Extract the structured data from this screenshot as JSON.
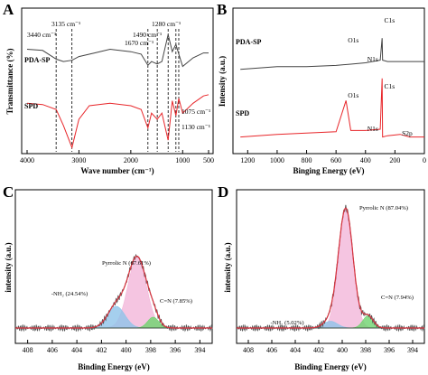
{
  "panels": {
    "A": "A",
    "B": "B",
    "C": "C",
    "D": "D"
  },
  "colors": {
    "pda_sp": "#444444",
    "spd": "#e8262a",
    "envelope": "#d9333f",
    "pyrrolic_fill": "#f2b6d9",
    "nh2_fill": "#8fc3ea",
    "cn_fill": "#6ed36e",
    "raw_data": "#555555",
    "background_line": "#222222"
  },
  "chart_data": [
    {
      "panel": "A",
      "type": "line",
      "xlabel": "Wave number (cm⁻¹)",
      "ylabel": "Transmittance (%)",
      "xlim": [
        4000,
        500
      ],
      "x_ticks": [
        "4000",
        "3000",
        "2000",
        "1000",
        "500"
      ],
      "series": [
        {
          "name": "PDA-SP",
          "x": [
            4000,
            3700,
            3440,
            3300,
            3135,
            3000,
            2700,
            2400,
            2000,
            1800,
            1670,
            1600,
            1490,
            1400,
            1280,
            1200,
            1130,
            1075,
            1000,
            800,
            600,
            500
          ],
          "y": [
            0.82,
            0.81,
            0.74,
            0.72,
            0.73,
            0.76,
            0.79,
            0.82,
            0.8,
            0.78,
            0.69,
            0.72,
            0.7,
            0.72,
            0.94,
            0.8,
            0.86,
            0.78,
            0.68,
            0.75,
            0.79,
            0.79
          ]
        },
        {
          "name": "SPD",
          "x": [
            4000,
            3700,
            3440,
            3300,
            3135,
            3000,
            2800,
            2400,
            2000,
            1800,
            1670,
            1600,
            1490,
            1400,
            1280,
            1200,
            1130,
            1075,
            1000,
            800,
            600,
            500
          ],
          "y": [
            0.38,
            0.37,
            0.33,
            0.2,
            0.02,
            0.25,
            0.36,
            0.38,
            0.36,
            0.33,
            0.18,
            0.3,
            0.25,
            0.3,
            0.08,
            0.4,
            0.28,
            0.42,
            0.3,
            0.38,
            0.44,
            0.45
          ]
        }
      ],
      "labels": {
        "pda_sp": "PDA-SP",
        "spd": "SPD"
      },
      "peaks": [
        {
          "x": 3440,
          "label": "3440 cm⁻¹"
        },
        {
          "x": 3135,
          "label": "3135 cm⁻¹"
        },
        {
          "x": 1670,
          "label": "1670 cm⁻¹"
        },
        {
          "x": 1490,
          "label": "1490 cm⁻¹"
        },
        {
          "x": 1280,
          "label": "1280 cm⁻¹"
        },
        {
          "x": 1130,
          "label": "1130 cm⁻¹"
        },
        {
          "x": 1075,
          "label": "1075 cm⁻¹"
        }
      ]
    },
    {
      "panel": "B",
      "type": "line",
      "xlabel": "Binging Energy (eV)",
      "ylabel": "Intensity (a.u.)",
      "xlim": [
        1300,
        0
      ],
      "x_ticks": [
        "1200",
        "1000",
        "800",
        "600",
        "400",
        "200",
        "0"
      ],
      "series": [
        {
          "name": "PDA-SP",
          "x": [
            1250,
            1000,
            800,
            600,
            500,
            400,
            300,
            287,
            284,
            250,
            100,
            0
          ],
          "y": [
            0.62,
            0.64,
            0.64,
            0.65,
            0.66,
            0.67,
            0.69,
            0.86,
            0.69,
            0.68,
            0.68,
            0.68
          ]
        },
        {
          "name": "SPD",
          "x": [
            1250,
            1000,
            800,
            600,
            532,
            500,
            400,
            300,
            287,
            284,
            250,
            165,
            100,
            0
          ],
          "y": [
            0.1,
            0.12,
            0.13,
            0.14,
            0.38,
            0.15,
            0.15,
            0.16,
            0.55,
            0.1,
            0.11,
            0.12,
            0.1,
            0.1
          ]
        }
      ],
      "labels": {
        "pda_sp": "PDA-SP",
        "spd": "SPD"
      },
      "peaks": [
        {
          "series": "PDA-SP",
          "x": 532,
          "label": "O1s"
        },
        {
          "series": "PDA-SP",
          "x": 400,
          "label": "N1s"
        },
        {
          "series": "PDA-SP",
          "x": 285,
          "label": "C1s"
        },
        {
          "series": "SPD",
          "x": 532,
          "label": "O1s"
        },
        {
          "series": "SPD",
          "x": 400,
          "label": "N1s"
        },
        {
          "series": "SPD",
          "x": 285,
          "label": "C1s"
        },
        {
          "series": "SPD",
          "x": 165,
          "label": "S2p"
        }
      ]
    },
    {
      "panel": "C",
      "type": "area",
      "xlabel": "Binding Energy (eV)",
      "ylabel": "intensity (a.u.)",
      "xlim": [
        409,
        393
      ],
      "x_ticks": [
        "408",
        "406",
        "404",
        "402",
        "400",
        "398",
        "396",
        "394"
      ],
      "components": [
        {
          "name": "Pyrrolic N (67.61%)",
          "center": 399.1,
          "height": 0.52,
          "sigma": 0.75
        },
        {
          "name": "-NH₂ (24.54%)",
          "center": 400.8,
          "height": 0.16,
          "sigma": 0.7
        },
        {
          "name": "C=N (7.85%)",
          "center": 397.8,
          "height": 0.08,
          "sigma": 0.45
        }
      ]
    },
    {
      "panel": "D",
      "type": "area",
      "xlabel": "Binding Energy (eV)",
      "ylabel": "intensity (a.u.)",
      "xlim": [
        409,
        393
      ],
      "x_ticks": [
        "408",
        "406",
        "404",
        "402",
        "400",
        "398",
        "396",
        "394"
      ],
      "components": [
        {
          "name": "Pyrrolic N (87.04%)",
          "center": 399.7,
          "height": 0.88,
          "sigma": 0.62
        },
        {
          "name": "-NH₂ (5.02%)",
          "center": 401.0,
          "height": 0.05,
          "sigma": 0.6
        },
        {
          "name": "C=N (7.94%)",
          "center": 397.8,
          "height": 0.09,
          "sigma": 0.45
        }
      ]
    }
  ]
}
